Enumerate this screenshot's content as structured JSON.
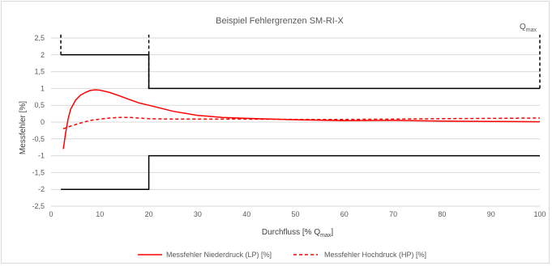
{
  "chart_data": {
    "type": "line",
    "title": "Beispiel Fehlergrenzen SM-RI-X",
    "xlabel": "Durchfluss [% Q",
    "xlabel_sub": "max",
    "xlabel_end": "]",
    "ylabel": "Messfehler [%]",
    "xlim": [
      0,
      100
    ],
    "ylim": [
      -2.5,
      2.5
    ],
    "x_ticks": [
      0,
      10,
      20,
      30,
      40,
      50,
      60,
      70,
      80,
      90,
      100
    ],
    "y_ticks": [
      2.5,
      2,
      1.5,
      1,
      0.5,
      0,
      -0.5,
      -1,
      -1.5,
      -2,
      -2.5
    ],
    "y_tick_labels": [
      "2,5",
      "2",
      "1,5",
      "1",
      "0,5",
      "0",
      "-0,5",
      "-1",
      "-1,5",
      "-2",
      "-2,5"
    ],
    "grid": "horizontal",
    "legend_position": "bottom",
    "annotations": [
      {
        "text": "Q",
        "sub": "max"
      }
    ],
    "limits": {
      "upper": [
        [
          2,
          2.6
        ],
        [
          2,
          2
        ],
        [
          20,
          2
        ],
        [
          20,
          1
        ],
        [
          100,
          1
        ]
      ],
      "lower": [
        [
          2,
          -2
        ],
        [
          20,
          -2
        ],
        [
          20,
          -1
        ],
        [
          100,
          -1
        ]
      ],
      "vertical_markers": [
        {
          "x": 2,
          "from": 2,
          "to": 2.6
        },
        {
          "x": 20,
          "from": 1,
          "to": 2.6
        },
        {
          "x": 100,
          "from": 1,
          "to": 2.6
        }
      ]
    },
    "series": [
      {
        "name": "Messfehler Niederdruck (LP) [%]",
        "style": "solid",
        "color": "#ff0000",
        "x": [
          2.5,
          3,
          3.5,
          4,
          5,
          6,
          7,
          8,
          9,
          10,
          12,
          14,
          16,
          18,
          20,
          25,
          30,
          35,
          40,
          50,
          60,
          70,
          80,
          90,
          100
        ],
        "y": [
          -0.8,
          -0.3,
          0.1,
          0.38,
          0.65,
          0.8,
          0.88,
          0.94,
          0.96,
          0.95,
          0.88,
          0.78,
          0.67,
          0.57,
          0.5,
          0.32,
          0.2,
          0.14,
          0.11,
          0.07,
          0.04,
          0.05,
          0.03,
          0.02,
          0.01
        ]
      },
      {
        "name": "Messfehler Hochdruck (HP) [%]",
        "style": "dashed",
        "color": "#ff0000",
        "x": [
          2.5,
          4,
          6,
          8,
          10,
          12,
          14,
          16,
          18,
          20,
          25,
          30,
          40,
          50,
          60,
          70,
          80,
          90,
          100
        ],
        "y": [
          -0.2,
          -0.12,
          -0.03,
          0.05,
          0.09,
          0.12,
          0.14,
          0.14,
          0.12,
          0.1,
          0.09,
          0.09,
          0.09,
          0.08,
          0.08,
          0.09,
          0.1,
          0.11,
          0.12
        ]
      }
    ]
  },
  "colors": {
    "limit_line": "#000000",
    "grid": "#d9d9d9",
    "text": "#595959"
  }
}
